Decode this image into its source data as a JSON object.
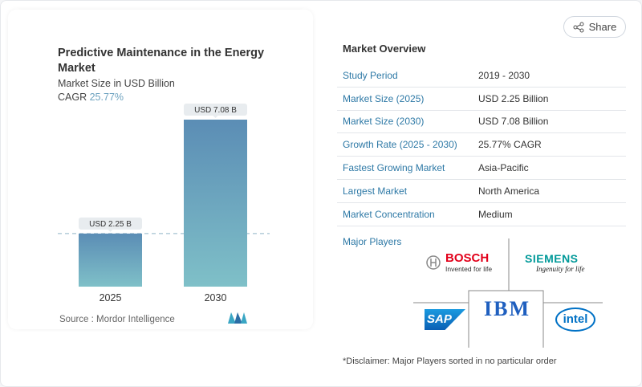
{
  "share_label": "Share",
  "chart_data": {
    "type": "bar",
    "title": "Predictive Maintenance in the Energy Market",
    "subtitle": "Market Size in USD Billion",
    "cagr_label": "CAGR",
    "cagr_value": "25.77%",
    "categories": [
      "2025",
      "2030"
    ],
    "values": [
      2.25,
      7.08
    ],
    "data_labels": [
      "USD 2.25 B",
      "USD 7.08 B"
    ],
    "ylim": [
      0,
      7.08
    ],
    "colors": {
      "top": "#5b8db5",
      "bottom": "#7fc0c8"
    },
    "source": "Source :  Mordor Intelligence"
  },
  "overview": {
    "title": "Market Overview",
    "rows": [
      {
        "k": "Study Period",
        "v": "2019 - 2030"
      },
      {
        "k": "Market Size (2025)",
        "v": "USD 2.25 Billion"
      },
      {
        "k": "Market Size (2030)",
        "v": "USD 7.08 Billion"
      },
      {
        "k": "Growth Rate (2025 - 2030)",
        "v": "25.77% CAGR"
      },
      {
        "k": "Fastest Growing Market",
        "v": "Asia-Pacific"
      },
      {
        "k": "Largest Market",
        "v": "North America"
      },
      {
        "k": "Market Concentration",
        "v": "Medium"
      }
    ],
    "major_players_label": "Major Players",
    "players": [
      "BOSCH",
      "SIEMENS",
      "SAP",
      "IBM",
      "intel"
    ],
    "bosch_tagline": "Invented for life",
    "siemens_tagline": "Ingenuity for life",
    "disclaimer": "*Disclaimer: Major Players sorted in no particular order"
  }
}
